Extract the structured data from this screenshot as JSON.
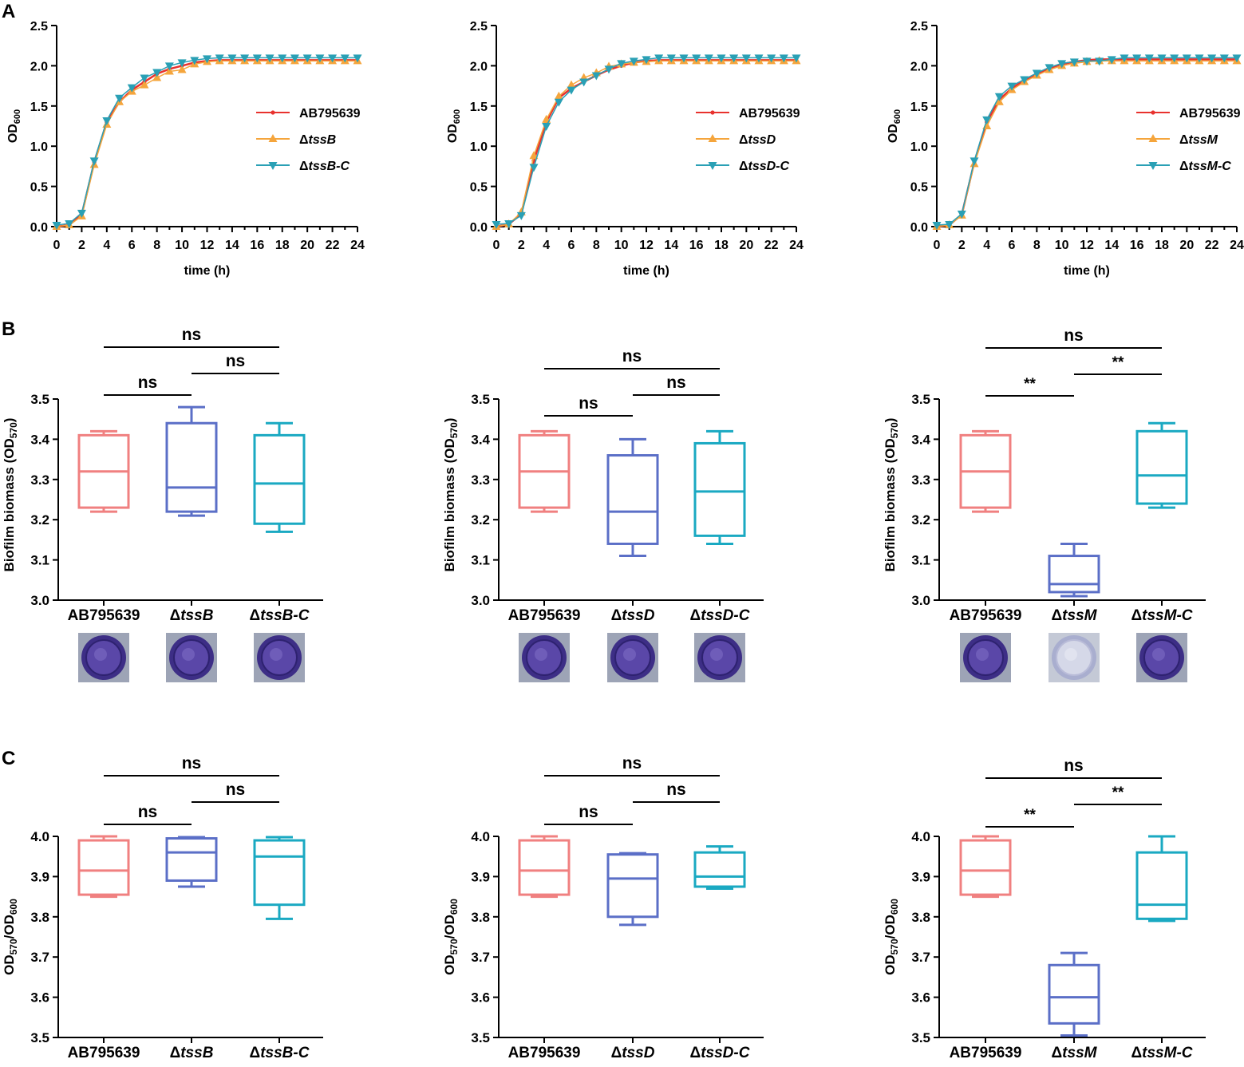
{
  "panel_labels": [
    "A",
    "B",
    "C"
  ],
  "colors": {
    "wt": "#f08080",
    "mutant": "#5b6fc7",
    "comp": "#1aa9c2",
    "wt_line": "#e8322e",
    "mut_line": "#f5a53c",
    "comp_line": "#2aa0b5"
  },
  "chart_data": [
    {
      "id": "A1",
      "type": "line",
      "title": "",
      "xlabel": "time (h)",
      "ylabel_main": "OD",
      "ylabel_sub": "600",
      "xlim": [
        0,
        24
      ],
      "ylim": [
        0,
        2.5
      ],
      "xticks": [
        "0",
        "2",
        "4",
        "6",
        "8",
        "10",
        "12",
        "14",
        "16",
        "18",
        "20",
        "22",
        "24"
      ],
      "yticks": [
        "0.0",
        "0.5",
        "1.0",
        "1.5",
        "2.0",
        "2.5"
      ],
      "x": [
        0,
        1,
        2,
        3,
        4,
        5,
        6,
        7,
        8,
        9,
        10,
        11,
        12,
        13,
        14,
        15,
        16,
        17,
        18,
        19,
        20,
        21,
        22,
        23,
        24
      ],
      "series": [
        {
          "name": "AB795639",
          "prefix": "",
          "italic": "",
          "marker": "dot",
          "values": [
            0,
            0.02,
            0.15,
            0.8,
            1.3,
            1.55,
            1.7,
            1.8,
            1.9,
            1.96,
            2.0,
            2.04,
            2.06,
            2.07,
            2.07,
            2.07,
            2.07,
            2.07,
            2.07,
            2.07,
            2.07,
            2.07,
            2.07,
            2.07,
            2.07
          ]
        },
        {
          "name": "ΔtssB",
          "prefix": "Δ",
          "italic": "tssB",
          "marker": "triangle-up",
          "values": [
            0,
            0.02,
            0.13,
            0.77,
            1.27,
            1.55,
            1.68,
            1.76,
            1.85,
            1.93,
            1.95,
            2.02,
            2.05,
            2.06,
            2.06,
            2.06,
            2.06,
            2.06,
            2.06,
            2.06,
            2.06,
            2.06,
            2.06,
            2.06,
            2.06
          ]
        },
        {
          "name": "ΔtssB-C",
          "prefix": "Δ",
          "italic": "tssB-C",
          "marker": "triangle-down",
          "values": [
            0.02,
            0.04,
            0.17,
            0.82,
            1.32,
            1.6,
            1.73,
            1.85,
            1.92,
            2.0,
            2.04,
            2.07,
            2.09,
            2.1,
            2.1,
            2.1,
            2.1,
            2.1,
            2.1,
            2.1,
            2.1,
            2.1,
            2.1,
            2.1,
            2.1
          ]
        }
      ]
    },
    {
      "id": "A2",
      "type": "line",
      "title": "",
      "xlabel": "time (h)",
      "ylabel_main": "OD",
      "ylabel_sub": "600",
      "xlim": [
        0,
        24
      ],
      "ylim": [
        0,
        2.5
      ],
      "xticks": [
        "0",
        "2",
        "4",
        "6",
        "8",
        "10",
        "12",
        "14",
        "16",
        "18",
        "20",
        "22",
        "24"
      ],
      "yticks": [
        "0.0",
        "0.5",
        "1.0",
        "1.5",
        "2.0",
        "2.5"
      ],
      "x": [
        0,
        1,
        2,
        3,
        4,
        5,
        6,
        7,
        8,
        9,
        10,
        11,
        12,
        13,
        14,
        15,
        16,
        17,
        18,
        19,
        20,
        21,
        22,
        23,
        24
      ],
      "series": [
        {
          "name": "AB795639",
          "prefix": "",
          "italic": "",
          "marker": "dot",
          "values": [
            0,
            0.03,
            0.16,
            0.82,
            1.3,
            1.6,
            1.72,
            1.8,
            1.88,
            1.95,
            2.0,
            2.04,
            2.06,
            2.07,
            2.07,
            2.07,
            2.07,
            2.07,
            2.07,
            2.07,
            2.07,
            2.07,
            2.07,
            2.07,
            2.07
          ]
        },
        {
          "name": "ΔtssD",
          "prefix": "Δ",
          "italic": "tssD",
          "marker": "triangle-up",
          "values": [
            0,
            0.03,
            0.18,
            0.88,
            1.33,
            1.62,
            1.76,
            1.85,
            1.91,
            1.99,
            2.02,
            2.04,
            2.05,
            2.06,
            2.06,
            2.06,
            2.06,
            2.06,
            2.06,
            2.06,
            2.06,
            2.06,
            2.06,
            2.06,
            2.06
          ]
        },
        {
          "name": "ΔtssD-C",
          "prefix": "Δ",
          "italic": "tssD-C",
          "marker": "triangle-down",
          "values": [
            0.03,
            0.04,
            0.14,
            0.74,
            1.25,
            1.55,
            1.7,
            1.8,
            1.88,
            1.96,
            2.03,
            2.06,
            2.08,
            2.1,
            2.1,
            2.1,
            2.1,
            2.1,
            2.1,
            2.1,
            2.1,
            2.1,
            2.1,
            2.1,
            2.1
          ]
        }
      ]
    },
    {
      "id": "A3",
      "type": "line",
      "title": "",
      "xlabel": "time (h)",
      "ylabel_main": "OD",
      "ylabel_sub": "600",
      "xlim": [
        0,
        24
      ],
      "ylim": [
        0,
        2.5
      ],
      "xticks": [
        "0",
        "2",
        "4",
        "6",
        "8",
        "10",
        "12",
        "14",
        "16",
        "18",
        "20",
        "22",
        "24"
      ],
      "yticks": [
        "0.0",
        "0.5",
        "1.0",
        "1.5",
        "2.0",
        "2.5"
      ],
      "x": [
        0,
        1,
        2,
        3,
        4,
        5,
        6,
        7,
        8,
        9,
        10,
        11,
        12,
        13,
        14,
        15,
        16,
        17,
        18,
        19,
        20,
        21,
        22,
        23,
        24
      ],
      "series": [
        {
          "name": "AB795639",
          "prefix": "",
          "italic": "",
          "marker": "dot",
          "values": [
            0,
            0.02,
            0.15,
            0.8,
            1.3,
            1.58,
            1.72,
            1.82,
            1.9,
            1.97,
            2.02,
            2.05,
            2.07,
            2.08,
            2.08,
            2.08,
            2.08,
            2.08,
            2.08,
            2.08,
            2.08,
            2.08,
            2.08,
            2.08,
            2.08
          ]
        },
        {
          "name": "ΔtssM",
          "prefix": "Δ",
          "italic": "tssM",
          "marker": "triangle-up",
          "values": [
            0,
            0.02,
            0.14,
            0.78,
            1.25,
            1.55,
            1.7,
            1.8,
            1.88,
            1.95,
            2.0,
            2.03,
            2.05,
            2.06,
            2.06,
            2.06,
            2.06,
            2.06,
            2.06,
            2.06,
            2.06,
            2.06,
            2.06,
            2.06,
            2.06
          ]
        },
        {
          "name": "ΔtssM-C",
          "prefix": "Δ",
          "italic": "tssM-C",
          "marker": "triangle-down",
          "values": [
            0.02,
            0.03,
            0.16,
            0.82,
            1.33,
            1.62,
            1.75,
            1.83,
            1.91,
            1.98,
            2.03,
            2.05,
            2.06,
            2.06,
            2.08,
            2.1,
            2.1,
            2.1,
            2.1,
            2.1,
            2.1,
            2.1,
            2.1,
            2.1,
            2.1
          ]
        }
      ]
    },
    {
      "id": "B1",
      "type": "box",
      "ylabel_main": "Biofilm biomass (OD",
      "ylabel_sub": "570",
      "ylabel_end": ")",
      "ylim": [
        3.0,
        3.5
      ],
      "yticks": [
        "3.0",
        "3.1",
        "3.2",
        "3.3",
        "3.4",
        "3.5"
      ],
      "categories": [
        {
          "label": "AB795639",
          "prefix": "",
          "italic": ""
        },
        {
          "label": "ΔtssB",
          "prefix": "Δ",
          "italic": "tssB"
        },
        {
          "label": "ΔtssB-C",
          "prefix": "Δ",
          "italic": "tssB-C"
        }
      ],
      "boxes": [
        {
          "min": 3.22,
          "q1": 3.23,
          "median": 3.32,
          "q3": 3.41,
          "max": 3.42
        },
        {
          "min": 3.21,
          "q1": 3.22,
          "median": 3.28,
          "q3": 3.44,
          "max": 3.48
        },
        {
          "min": 3.17,
          "q1": 3.19,
          "median": 3.29,
          "q3": 3.41,
          "max": 3.44
        }
      ],
      "sig": [
        {
          "from": 0,
          "to": 2,
          "label": "ns"
        },
        {
          "from": 1,
          "to": 2,
          "label": "ns"
        },
        {
          "from": 0,
          "to": 1,
          "label": "ns"
        }
      ],
      "wells": [
        "dark",
        "dark",
        "dark"
      ]
    },
    {
      "id": "B2",
      "type": "box",
      "ylabel_main": "Biofilm biomass (OD",
      "ylabel_sub": "570",
      "ylabel_end": ")",
      "ylim": [
        3.0,
        3.5
      ],
      "yticks": [
        "3.0",
        "3.1",
        "3.2",
        "3.3",
        "3.4",
        "3.5"
      ],
      "categories": [
        {
          "label": "AB795639",
          "prefix": "",
          "italic": ""
        },
        {
          "label": "ΔtssD",
          "prefix": "Δ",
          "italic": "tssD"
        },
        {
          "label": "ΔtssD-C",
          "prefix": "Δ",
          "italic": "tssD-C"
        }
      ],
      "boxes": [
        {
          "min": 3.22,
          "q1": 3.23,
          "median": 3.32,
          "q3": 3.41,
          "max": 3.42
        },
        {
          "min": 3.11,
          "q1": 3.14,
          "median": 3.22,
          "q3": 3.36,
          "max": 3.4
        },
        {
          "min": 3.14,
          "q1": 3.16,
          "median": 3.27,
          "q3": 3.39,
          "max": 3.42
        }
      ],
      "sig": [
        {
          "from": 0,
          "to": 2,
          "label": "ns"
        },
        {
          "from": 1,
          "to": 2,
          "label": "ns"
        },
        {
          "from": 0,
          "to": 1,
          "label": "ns"
        }
      ],
      "wells": [
        "dark",
        "dark",
        "dark"
      ]
    },
    {
      "id": "B3",
      "type": "box",
      "ylabel_main": "Biofilm biomass (OD",
      "ylabel_sub": "570",
      "ylabel_end": ")",
      "ylim": [
        3.0,
        3.5
      ],
      "yticks": [
        "3.0",
        "3.1",
        "3.2",
        "3.3",
        "3.4",
        "3.5"
      ],
      "categories": [
        {
          "label": "AB795639",
          "prefix": "",
          "italic": ""
        },
        {
          "label": "ΔtssM",
          "prefix": "Δ",
          "italic": "tssM"
        },
        {
          "label": "ΔtssM-C",
          "prefix": "Δ",
          "italic": "tssM-C"
        }
      ],
      "boxes": [
        {
          "min": 3.22,
          "q1": 3.23,
          "median": 3.32,
          "q3": 3.41,
          "max": 3.42
        },
        {
          "min": 3.01,
          "q1": 3.02,
          "median": 3.04,
          "q3": 3.11,
          "max": 3.14
        },
        {
          "min": 3.23,
          "q1": 3.24,
          "median": 3.31,
          "q3": 3.42,
          "max": 3.44
        }
      ],
      "sig": [
        {
          "from": 0,
          "to": 2,
          "label": "ns"
        },
        {
          "from": 1,
          "to": 2,
          "label": "**"
        },
        {
          "from": 0,
          "to": 1,
          "label": "**"
        }
      ],
      "wells": [
        "dark",
        "pale",
        "dark"
      ]
    },
    {
      "id": "C1",
      "type": "box",
      "ylabel_main": "OD",
      "ylabel_sub": "570",
      "ylabel_mid": "/OD",
      "ylabel_sub2": "600",
      "ylim": [
        3.5,
        4.0
      ],
      "yticks": [
        "3.5",
        "3.6",
        "3.7",
        "3.8",
        "3.9",
        "4.0"
      ],
      "categories": [
        {
          "label": "AB795639",
          "prefix": "",
          "italic": ""
        },
        {
          "label": "ΔtssB",
          "prefix": "Δ",
          "italic": "tssB"
        },
        {
          "label": "ΔtssB-C",
          "prefix": "Δ",
          "italic": "tssB-C"
        }
      ],
      "boxes": [
        {
          "min": 3.85,
          "q1": 3.855,
          "median": 3.915,
          "q3": 3.99,
          "max": 4.0
        },
        {
          "min": 3.875,
          "q1": 3.89,
          "median": 3.96,
          "q3": 3.995,
          "max": 3.998
        },
        {
          "min": 3.795,
          "q1": 3.83,
          "median": 3.95,
          "q3": 3.99,
          "max": 3.998
        }
      ],
      "sig": [
        {
          "from": 0,
          "to": 2,
          "label": "ns"
        },
        {
          "from": 1,
          "to": 2,
          "label": "ns"
        },
        {
          "from": 0,
          "to": 1,
          "label": "ns"
        }
      ]
    },
    {
      "id": "C2",
      "type": "box",
      "ylabel_main": "OD",
      "ylabel_sub": "570",
      "ylabel_mid": "/OD",
      "ylabel_sub2": "600",
      "ylim": [
        3.5,
        4.0
      ],
      "yticks": [
        "3.5",
        "3.6",
        "3.7",
        "3.8",
        "3.9",
        "4.0"
      ],
      "categories": [
        {
          "label": "AB795639",
          "prefix": "",
          "italic": ""
        },
        {
          "label": "ΔtssD",
          "prefix": "Δ",
          "italic": "tssD"
        },
        {
          "label": "ΔtssD-C",
          "prefix": "Δ",
          "italic": "tssD-C"
        }
      ],
      "boxes": [
        {
          "min": 3.85,
          "q1": 3.855,
          "median": 3.915,
          "q3": 3.99,
          "max": 4.0
        },
        {
          "min": 3.78,
          "q1": 3.8,
          "median": 3.895,
          "q3": 3.955,
          "max": 3.958
        },
        {
          "min": 3.87,
          "q1": 3.875,
          "median": 3.9,
          "q3": 3.96,
          "max": 3.975
        }
      ],
      "sig": [
        {
          "from": 0,
          "to": 2,
          "label": "ns"
        },
        {
          "from": 1,
          "to": 2,
          "label": "ns"
        },
        {
          "from": 0,
          "to": 1,
          "label": "ns"
        }
      ]
    },
    {
      "id": "C3",
      "type": "box",
      "ylabel_main": "OD",
      "ylabel_sub": "570",
      "ylabel_mid": "/OD",
      "ylabel_sub2": "600",
      "ylim": [
        3.5,
        4.0
      ],
      "yticks": [
        "3.5",
        "3.6",
        "3.7",
        "3.8",
        "3.9",
        "4.0"
      ],
      "categories": [
        {
          "label": "AB795639",
          "prefix": "",
          "italic": ""
        },
        {
          "label": "ΔtssM",
          "prefix": "Δ",
          "italic": "tssM"
        },
        {
          "label": "ΔtssM-C",
          "prefix": "Δ",
          "italic": "tssM-C"
        }
      ],
      "boxes": [
        {
          "min": 3.85,
          "q1": 3.855,
          "median": 3.915,
          "q3": 3.99,
          "max": 4.0
        },
        {
          "min": 3.505,
          "q1": 3.535,
          "median": 3.6,
          "q3": 3.68,
          "max": 3.71
        },
        {
          "min": 3.79,
          "q1": 3.795,
          "median": 3.83,
          "q3": 3.96,
          "max": 4.0
        }
      ],
      "sig": [
        {
          "from": 0,
          "to": 2,
          "label": "ns"
        },
        {
          "from": 1,
          "to": 2,
          "label": "**"
        },
        {
          "from": 0,
          "to": 1,
          "label": "**"
        }
      ]
    }
  ]
}
